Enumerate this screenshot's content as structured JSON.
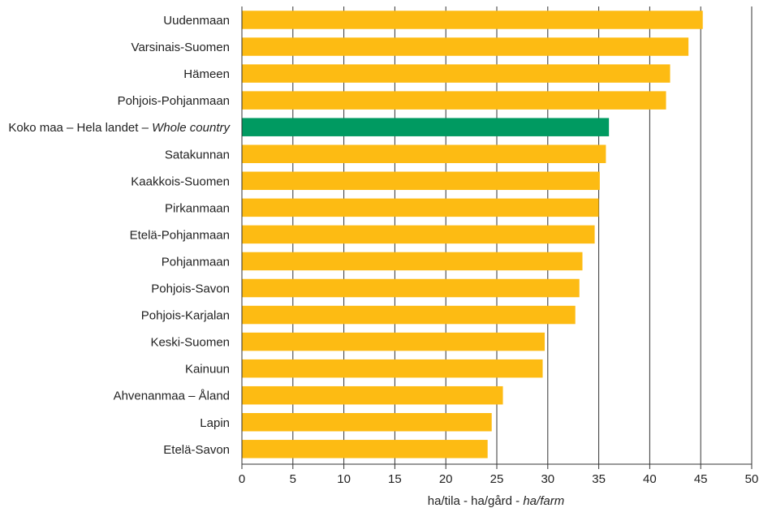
{
  "chart_data": {
    "type": "bar",
    "orientation": "horizontal",
    "title": "",
    "categories": [
      "Uudenmaan",
      "Varsinais-Suomen",
      "Hämeen",
      "Pohjois-Pohjanmaan",
      "Koko maa – Hela landet – Whole country",
      "Satakunnan",
      "Kaakkois-Suomen",
      "Pirkanmaan",
      "Etelä-Pohjanmaan",
      "Pohjanmaan",
      "Pohjois-Savon",
      "Pohjois-Karjalan",
      "Keski-Suomen",
      "Kainuun",
      "Ahvenanmaa – Åland",
      "Lapin",
      "Etelä-Savon"
    ],
    "label_parts": {
      "whole_country_plain": "Koko maa – Hela landet – ",
      "whole_country_italic": "Whole country"
    },
    "values": [
      45.2,
      43.8,
      42.0,
      41.6,
      36.0,
      35.7,
      35.1,
      35.0,
      34.6,
      33.4,
      33.1,
      32.7,
      29.7,
      29.5,
      25.6,
      24.5,
      24.1
    ],
    "highlight_index": 4,
    "colors": {
      "bar": "#FDBB13",
      "highlight": "#009A61",
      "grid": "#333333"
    },
    "xlim": [
      0,
      50
    ],
    "xticks": [
      "0",
      "5",
      "10",
      "15",
      "20",
      "25",
      "30",
      "35",
      "40",
      "45",
      "50"
    ],
    "xlabel_plain": "ha/tila - ha/gård - ",
    "xlabel_italic": "ha/farm",
    "ylabel": "",
    "grid": true
  }
}
